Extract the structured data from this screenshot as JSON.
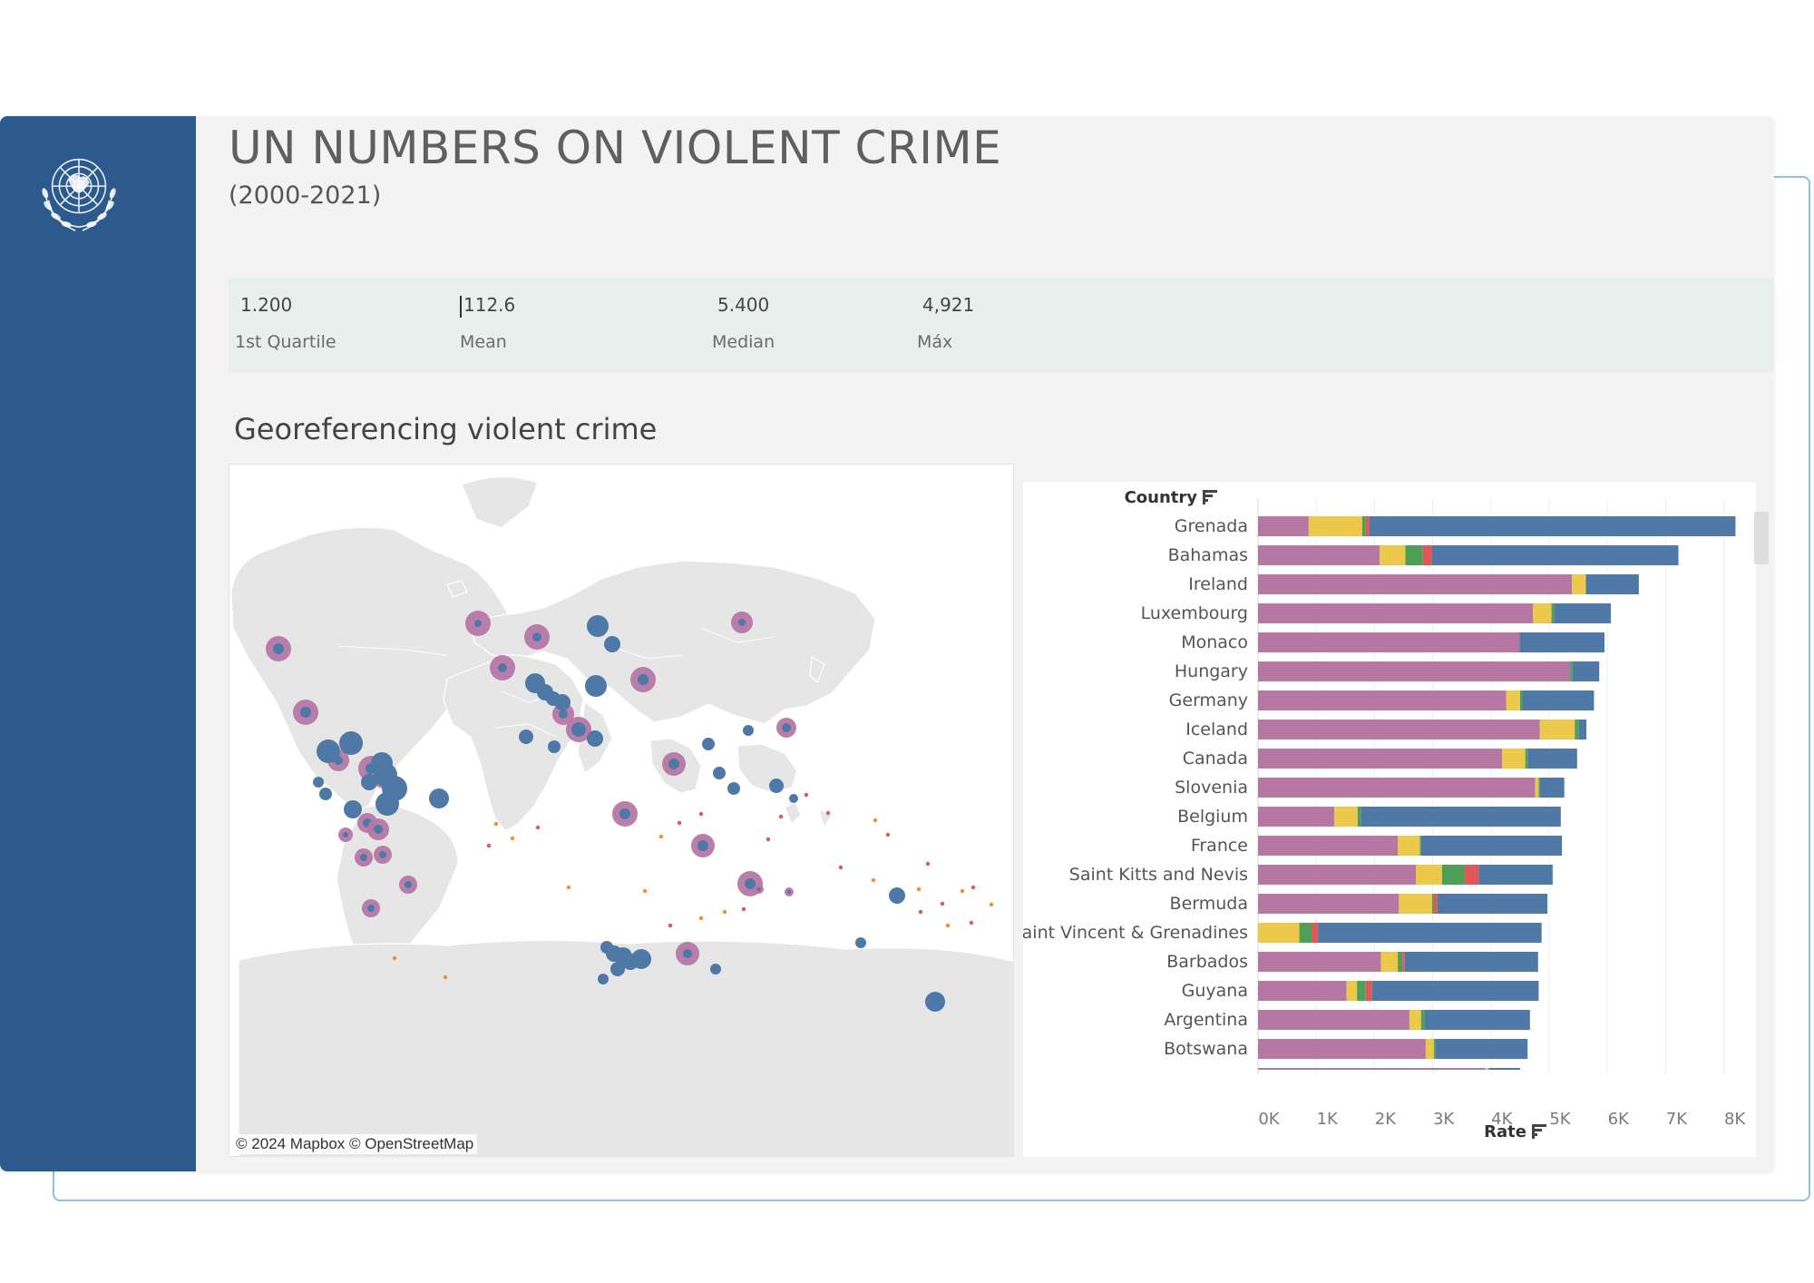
{
  "header": {
    "title": "UN NUMBERS ON VIOLENT CRIME",
    "subtitle": "(2000-2021)"
  },
  "stats": [
    {
      "value": "1.200",
      "label": "1st Quartile"
    },
    {
      "value": "112.6",
      "label": "Mean"
    },
    {
      "value": "5.400",
      "label": "Median"
    },
    {
      "value": "4,921",
      "label": "Máx"
    }
  ],
  "map": {
    "section_title": "Georeferencing violent crime",
    "attribution": "© 2024 Mapbox  © OpenStreetMap"
  },
  "colors": {
    "sidebar": "#2c5a8c",
    "pink": "#b677a5",
    "yellow": "#ecc94b",
    "green": "#4e9f58",
    "red": "#e05759",
    "blue": "#4e79a7"
  },
  "icons": {
    "emblem": "un-emblem-icon",
    "sort": "sort-descending-icon"
  },
  "chart_data": {
    "type": "bar",
    "orientation": "horizontal",
    "stacked": true,
    "y_header": "Country",
    "xlabel": "Rate",
    "xlim": [
      0,
      8500
    ],
    "x_ticks": [
      "0K",
      "1K",
      "2K",
      "3K",
      "4K",
      "5K",
      "6K",
      "7K",
      "8K"
    ],
    "x_tick_values": [
      0,
      1000,
      2000,
      3000,
      4000,
      5000,
      6000,
      7000,
      8000
    ],
    "grid": true,
    "categories": [
      "Grenada",
      "Bahamas",
      "Ireland",
      "Luxembourg",
      "Monaco",
      "Hungary",
      "Germany",
      "Iceland",
      "Canada",
      "Slovenia",
      "Belgium",
      "France",
      "Saint Kitts and Nevis",
      "Bermuda",
      "Saint Vincent & Grenadines",
      "Barbados",
      "Guyana",
      "Argentina",
      "Botswana",
      ""
    ],
    "series": [
      {
        "color": "#b677a5",
        "values": [
          870,
          2090,
          5390,
          4720,
          4490,
          5360,
          4260,
          4840,
          4190,
          4760,
          1310,
          2400,
          2710,
          2420,
          0,
          2110,
          1520,
          2600,
          2880,
          3900
        ]
      },
      {
        "color": "#ecc94b",
        "values": [
          920,
          440,
          240,
          320,
          0,
          0,
          240,
          600,
          400,
          60,
          400,
          380,
          450,
          570,
          710,
          290,
          180,
          200,
          140,
          60
        ]
      },
      {
        "color": "#4e9f58",
        "values": [
          60,
          300,
          0,
          40,
          0,
          40,
          40,
          70,
          40,
          20,
          60,
          20,
          390,
          30,
          210,
          80,
          150,
          60,
          30,
          0
        ]
      },
      {
        "color": "#e05759",
        "values": [
          60,
          160,
          0,
          0,
          0,
          0,
          0,
          0,
          0,
          0,
          0,
          0,
          240,
          60,
          110,
          40,
          110,
          0,
          0,
          0
        ]
      },
      {
        "color": "#4e79a7",
        "values": [
          6290,
          4230,
          910,
          980,
          1460,
          460,
          1230,
          130,
          850,
          420,
          3430,
          2420,
          1270,
          1890,
          3840,
          2290,
          2860,
          1810,
          1580,
          540
        ]
      }
    ]
  }
}
